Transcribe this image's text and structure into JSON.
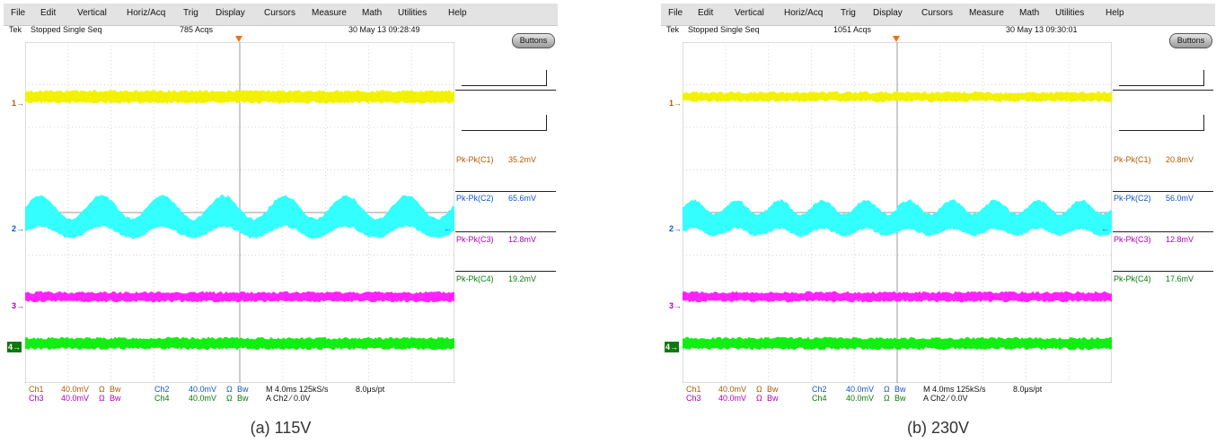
{
  "menu": [
    "File",
    "Edit",
    "Vertical",
    "Horiz/Acq",
    "Trig",
    "Display",
    "Cursors",
    "Measure",
    "Math",
    "Utilities",
    "Help"
  ],
  "buttons_label": "Buttons",
  "channel_markers": [
    "1",
    "2",
    "3",
    "4"
  ],
  "colors": {
    "ch1": "#f2f200",
    "ch2": "#33ffff",
    "ch3": "#ff22ff",
    "ch4": "#11ee11",
    "ch1_text": "#b05a00",
    "ch2_text": "#1155cc",
    "ch3_text": "#b000b0",
    "ch4_text": "#0a7a0a",
    "trigger": "#f07018"
  },
  "footer": {
    "ch1": "Ch1",
    "ch1_scale": "40.0mV",
    "ch2": "Ch2",
    "ch2_scale": "40.0mV",
    "ch3": "Ch3",
    "ch3_scale": "40.0mV",
    "ch4": "Ch4",
    "ch4_scale": "40.0mV",
    "coupling": "Ω",
    "bw": "Bw",
    "timebase": "M 4.0ms 125kS/s",
    "res": "8.0μs/pt",
    "trig": "A  Ch2  ⁄  0.0V"
  },
  "scope_a": {
    "status_tek": "Tek",
    "status_mode": "Stopped  Single Seq",
    "acqs": "785 Acqs",
    "datetime": "30 May 13 09:28:49",
    "measurements": [
      {
        "label": "Pk-Pk(C1)",
        "value": "35.2mV"
      },
      {
        "label": "Pk-Pk(C2)",
        "value": "65.6mV"
      },
      {
        "label": "Pk-Pk(C3)",
        "value": "12.8mV"
      },
      {
        "label": "Pk-Pk(C4)",
        "value": "19.2mV"
      }
    ],
    "caption": "(a) 115V"
  },
  "scope_b": {
    "status_tek": "Tek",
    "status_mode": "Stopped  Single Seq",
    "acqs": "1051 Acqs",
    "datetime": "30 May 13 09:30:01",
    "measurements": [
      {
        "label": "Pk-Pk(C1)",
        "value": "20.8mV"
      },
      {
        "label": "Pk-Pk(C2)",
        "value": "56.0mV"
      },
      {
        "label": "Pk-Pk(C3)",
        "value": "12.8mV"
      },
      {
        "label": "Pk-Pk(C4)",
        "value": "17.6mV"
      }
    ],
    "caption": "(b) 230V"
  }
}
